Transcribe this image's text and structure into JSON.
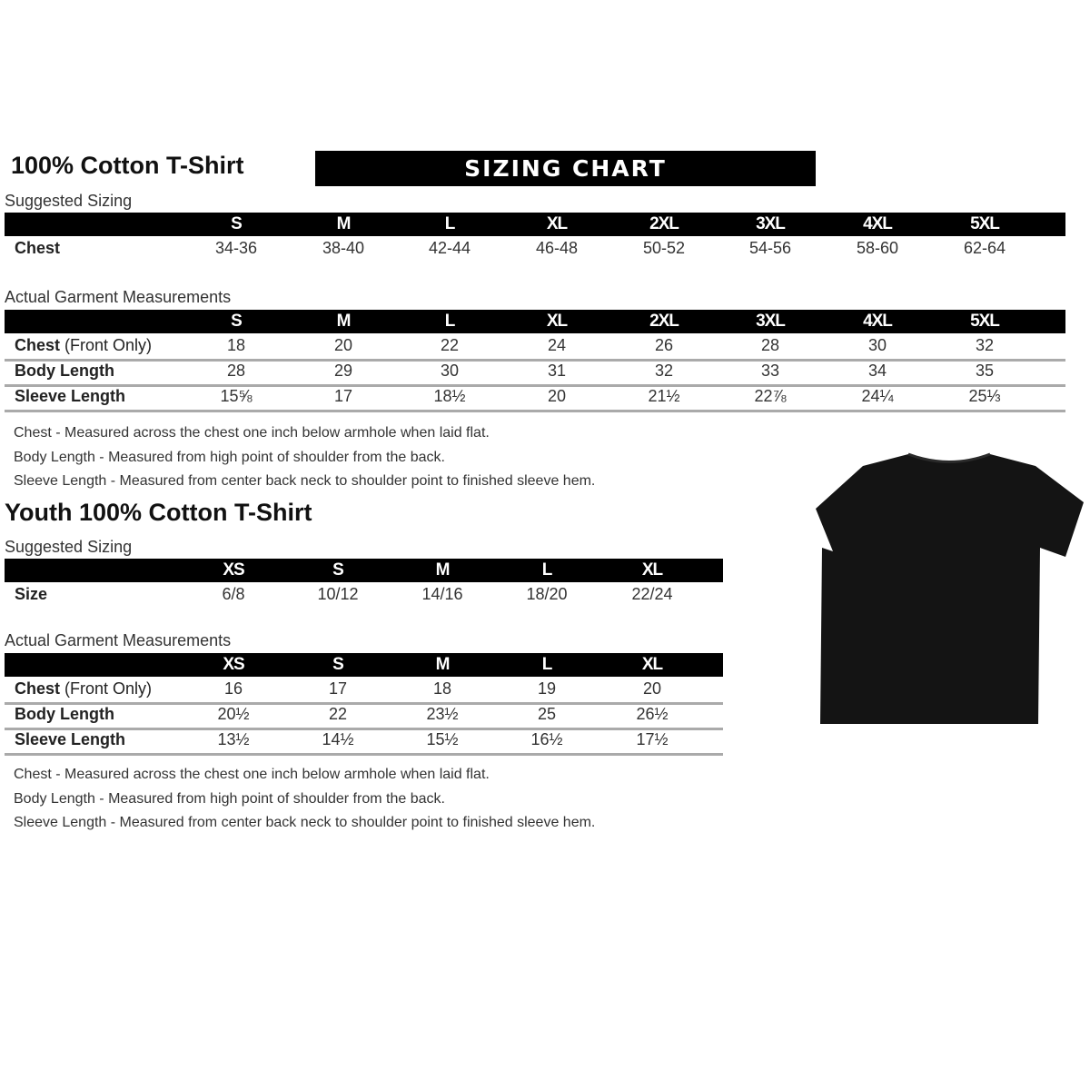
{
  "adult": {
    "title": "100% Cotton T-Shirt",
    "banner": "SIZING CHART",
    "suggested_label": "Suggested Sizing",
    "sizes": [
      "S",
      "M",
      "L",
      "XL",
      "2XL",
      "3XL",
      "4XL",
      "5XL"
    ],
    "suggested_rows": [
      {
        "label": "Chest",
        "values": [
          "34-36",
          "38-40",
          "42-44",
          "46-48",
          "50-52",
          "54-56",
          "58-60",
          "62-64"
        ]
      }
    ],
    "actual_label": "Actual Garment Measurements",
    "actual_rows": [
      {
        "label": "Chest",
        "label_note": "(Front Only)",
        "values": [
          "18",
          "20",
          "22",
          "24",
          "26",
          "28",
          "30",
          "32"
        ]
      },
      {
        "label": "Body Length",
        "values": [
          "28",
          "29",
          "30",
          "31",
          "32",
          "33",
          "34",
          "35"
        ]
      },
      {
        "label": "Sleeve Length",
        "values": [
          "15⅝",
          "17",
          "18½",
          "20",
          "21½",
          "22⅞",
          "24¼",
          "25⅓"
        ]
      }
    ],
    "notes": [
      "Chest - Measured across the chest one inch below armhole when laid flat.",
      "Body Length - Measured from high point of shoulder from the back.",
      "Sleeve Length - Measured from center back neck to shoulder point to finished sleeve hem."
    ]
  },
  "youth": {
    "title": "Youth 100% Cotton T-Shirt",
    "suggested_label": "Suggested Sizing",
    "sizes": [
      "XS",
      "S",
      "M",
      "L",
      "XL"
    ],
    "suggested_rows": [
      {
        "label": "Size",
        "values": [
          "6/8",
          "10/12",
          "14/16",
          "18/20",
          "22/24"
        ]
      }
    ],
    "actual_label": "Actual Garment Measurements",
    "actual_rows": [
      {
        "label": "Chest",
        "label_note": "(Front Only)",
        "values": [
          "16",
          "17",
          "18",
          "19",
          "20"
        ]
      },
      {
        "label": "Body Length",
        "values": [
          "20½",
          "22",
          "23½",
          "25",
          "26½"
        ]
      },
      {
        "label": "Sleeve Length",
        "values": [
          "13½",
          "14½",
          "15½",
          "16½",
          "17½"
        ]
      }
    ],
    "notes": [
      "Chest - Measured across the chest one inch below armhole when laid flat.",
      "Body Length - Measured from high point of shoulder from the back.",
      "Sleeve Length - Measured from center back neck to shoulder point to finished sleeve hem."
    ]
  },
  "image": {
    "icon": "black-tshirt-icon",
    "color": "#141414"
  }
}
